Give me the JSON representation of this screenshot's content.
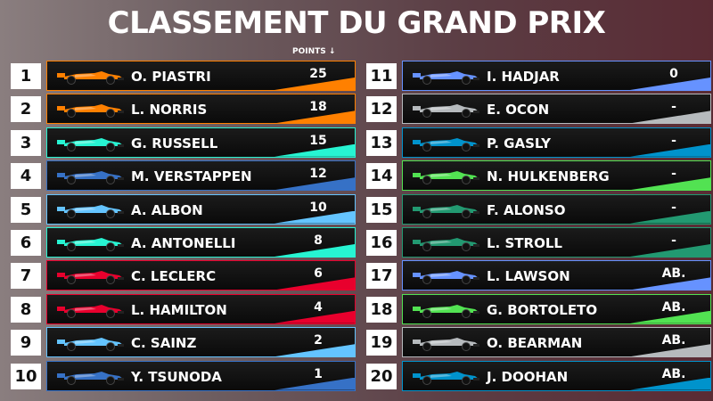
{
  "title": "CLASSEMENT DU GRAND PRIX",
  "points_header": "POINTS ↓",
  "left": [
    {
      "pos": "1",
      "driver": "O. PIASTRI",
      "points": "25",
      "team_color": "#ff8000"
    },
    {
      "pos": "2",
      "driver": "L. NORRIS",
      "points": "18",
      "team_color": "#ff8000"
    },
    {
      "pos": "3",
      "driver": "G. RUSSELL",
      "points": "15",
      "team_color": "#27f4d2"
    },
    {
      "pos": "4",
      "driver": "M. VERSTAPPEN",
      "points": "12",
      "team_color": "#3671c6"
    },
    {
      "pos": "5",
      "driver": "A. ALBON",
      "points": "10",
      "team_color": "#64c4ff"
    },
    {
      "pos": "6",
      "driver": "A. ANTONELLI",
      "points": "8",
      "team_color": "#27f4d2"
    },
    {
      "pos": "7",
      "driver": "C. LECLERC",
      "points": "6",
      "team_color": "#e8002d"
    },
    {
      "pos": "8",
      "driver": "L. HAMILTON",
      "points": "4",
      "team_color": "#e8002d"
    },
    {
      "pos": "9",
      "driver": "C. SAINZ",
      "points": "2",
      "team_color": "#64c4ff"
    },
    {
      "pos": "10",
      "driver": "Y. TSUNODA",
      "points": "1",
      "team_color": "#3671c6"
    }
  ],
  "right": [
    {
      "pos": "11",
      "driver": "I. HADJAR",
      "points": "0",
      "team_color": "#6692ff"
    },
    {
      "pos": "12",
      "driver": "E. OCON",
      "points": "-",
      "team_color": "#b6babd"
    },
    {
      "pos": "13",
      "driver": "P. GASLY",
      "points": "-",
      "team_color": "#0093cc"
    },
    {
      "pos": "14",
      "driver": "N. HULKENBERG",
      "points": "-",
      "team_color": "#52e252"
    },
    {
      "pos": "15",
      "driver": "F. ALONSO",
      "points": "-",
      "team_color": "#229971"
    },
    {
      "pos": "16",
      "driver": "L. STROLL",
      "points": "-",
      "team_color": "#229971"
    },
    {
      "pos": "17",
      "driver": "L. LAWSON",
      "points": "AB.",
      "team_color": "#6692ff"
    },
    {
      "pos": "18",
      "driver": "G. BORTOLETO",
      "points": "AB.",
      "team_color": "#52e252"
    },
    {
      "pos": "19",
      "driver": "O. BEARMAN",
      "points": "AB.",
      "team_color": "#b6babd"
    },
    {
      "pos": "20",
      "driver": "J. DOOHAN",
      "points": "AB.",
      "team_color": "#0093cc"
    }
  ]
}
